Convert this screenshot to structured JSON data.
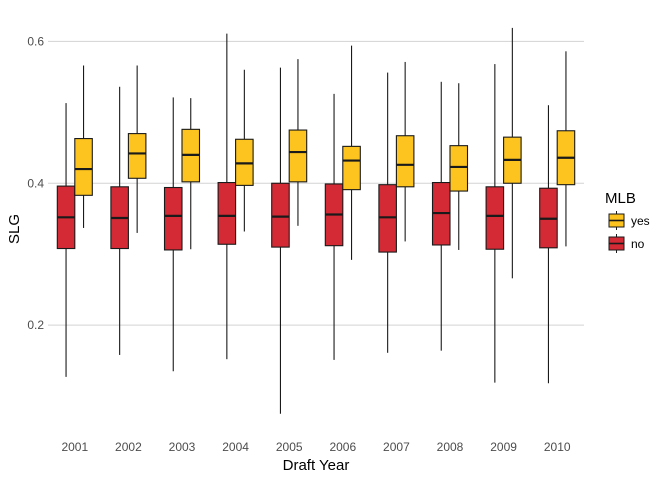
{
  "chart_data": {
    "type": "boxplot",
    "xlabel": "Draft Year",
    "ylabel": "SLG",
    "categories": [
      "2001",
      "2002",
      "2003",
      "2004",
      "2005",
      "2006",
      "2007",
      "2008",
      "2009",
      "2010"
    ],
    "y_ticks": [
      0.2,
      0.4,
      0.6
    ],
    "y_tick_labels": [
      "0.2",
      "0.4",
      "0.6"
    ],
    "ylim": [
      0.055,
      0.64
    ],
    "grid": "horizontal major",
    "legend": {
      "title": "MLB",
      "position": "right",
      "entries": [
        {
          "key": "yes",
          "label": "yes",
          "color": "#FDC41F"
        },
        {
          "key": "no",
          "label": "no",
          "color": "#D42A35"
        }
      ]
    },
    "series": [
      {
        "name": "no",
        "color": "#D42A35",
        "boxes": [
          {
            "min": 0.127,
            "q1": 0.308,
            "median": 0.352,
            "q3": 0.396,
            "max": 0.513
          },
          {
            "min": 0.158,
            "q1": 0.308,
            "median": 0.351,
            "q3": 0.395,
            "max": 0.536
          },
          {
            "min": 0.135,
            "q1": 0.306,
            "median": 0.354,
            "q3": 0.394,
            "max": 0.521
          },
          {
            "min": 0.152,
            "q1": 0.314,
            "median": 0.354,
            "q3": 0.401,
            "max": 0.611
          },
          {
            "min": 0.075,
            "q1": 0.31,
            "median": 0.353,
            "q3": 0.4,
            "max": 0.563
          },
          {
            "min": 0.151,
            "q1": 0.312,
            "median": 0.356,
            "q3": 0.399,
            "max": 0.526
          },
          {
            "min": 0.161,
            "q1": 0.303,
            "median": 0.352,
            "q3": 0.398,
            "max": 0.556
          },
          {
            "min": 0.164,
            "q1": 0.313,
            "median": 0.358,
            "q3": 0.401,
            "max": 0.543
          },
          {
            "min": 0.119,
            "q1": 0.307,
            "median": 0.354,
            "q3": 0.395,
            "max": 0.568
          },
          {
            "min": 0.118,
            "q1": 0.309,
            "median": 0.35,
            "q3": 0.393,
            "max": 0.51
          }
        ]
      },
      {
        "name": "yes",
        "color": "#FDC41F",
        "boxes": [
          {
            "min": 0.337,
            "q1": 0.383,
            "median": 0.42,
            "q3": 0.463,
            "max": 0.566
          },
          {
            "min": 0.33,
            "q1": 0.407,
            "median": 0.442,
            "q3": 0.47,
            "max": 0.566
          },
          {
            "min": 0.307,
            "q1": 0.402,
            "median": 0.44,
            "q3": 0.476,
            "max": 0.52
          },
          {
            "min": 0.332,
            "q1": 0.397,
            "median": 0.428,
            "q3": 0.462,
            "max": 0.56
          },
          {
            "min": 0.34,
            "q1": 0.402,
            "median": 0.444,
            "q3": 0.475,
            "max": 0.575
          },
          {
            "min": 0.292,
            "q1": 0.391,
            "median": 0.432,
            "q3": 0.452,
            "max": 0.594
          },
          {
            "min": 0.318,
            "q1": 0.395,
            "median": 0.426,
            "q3": 0.467,
            "max": 0.571
          },
          {
            "min": 0.306,
            "q1": 0.389,
            "median": 0.423,
            "q3": 0.453,
            "max": 0.541
          },
          {
            "min": 0.266,
            "q1": 0.4,
            "median": 0.433,
            "q3": 0.465,
            "max": 0.619
          },
          {
            "min": 0.311,
            "q1": 0.398,
            "median": 0.436,
            "q3": 0.474,
            "max": 0.586
          }
        ]
      }
    ]
  }
}
